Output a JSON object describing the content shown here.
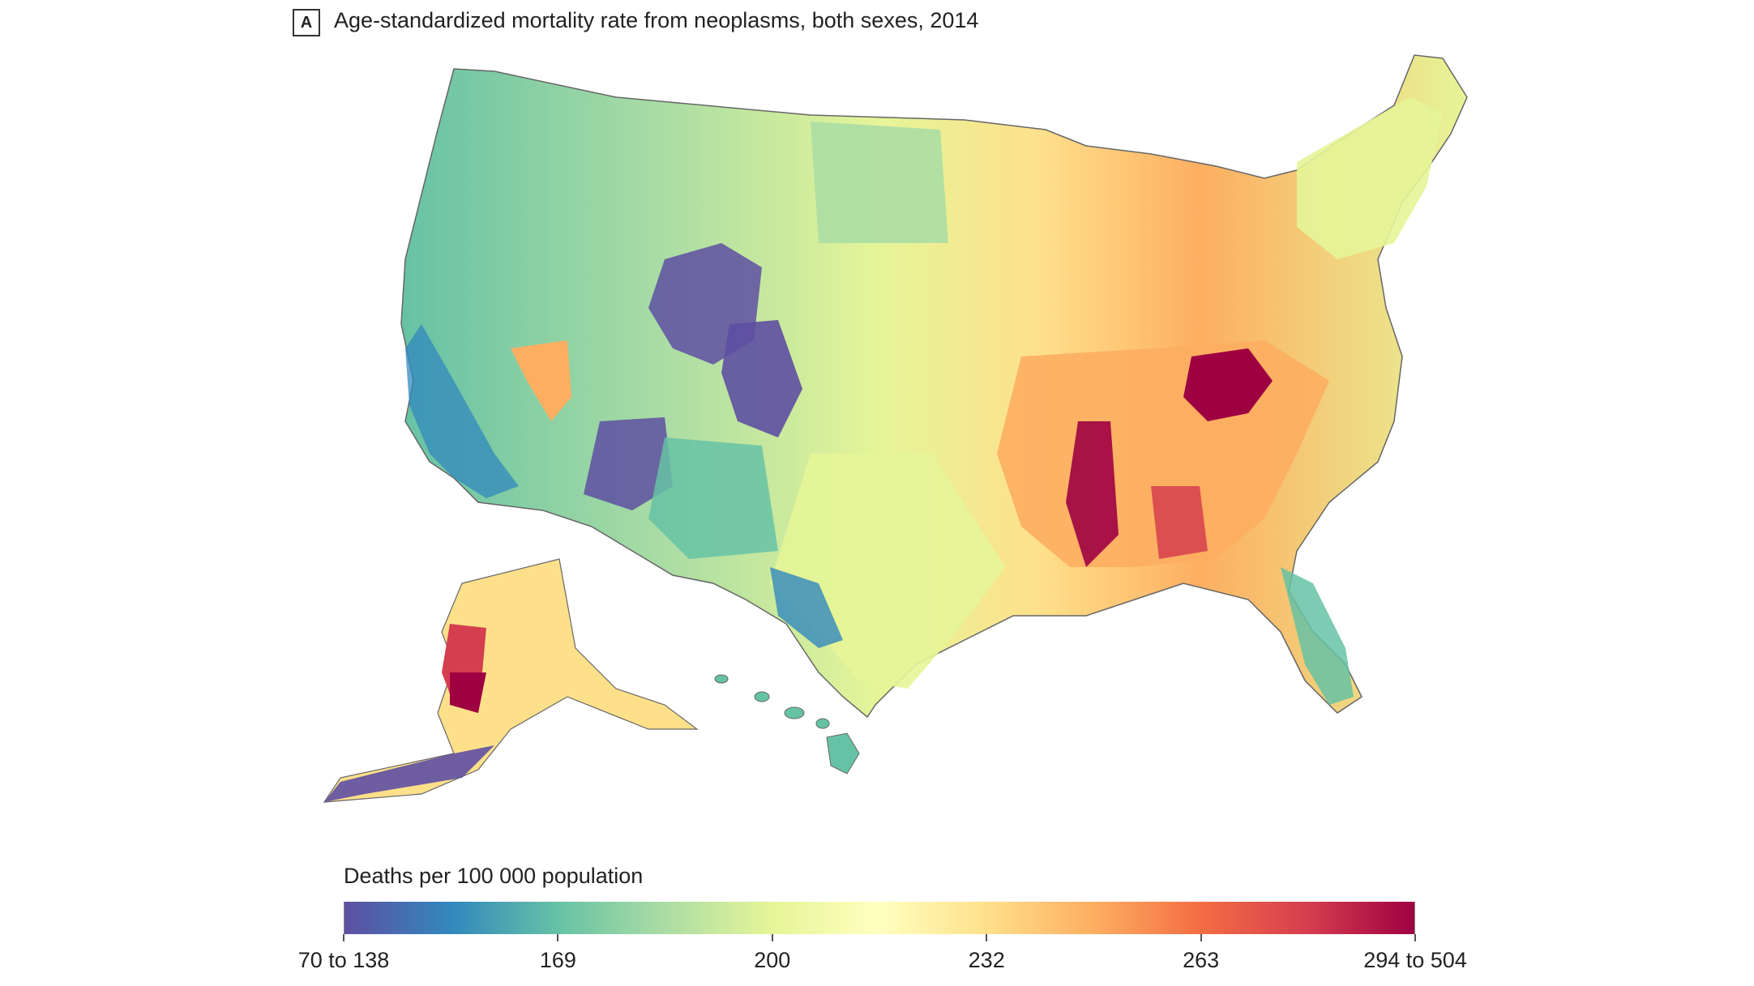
{
  "panel": {
    "label": "A"
  },
  "title": "Age-standardized mortality rate from neoplasms, both sexes, 2014",
  "legend": {
    "title": "Deaths per 100 000 population",
    "ticks": [
      "70 to 138",
      "169",
      "200",
      "232",
      "263",
      "294 to 504"
    ],
    "colors": [
      "#5e4fa2",
      "#3288bd",
      "#66c2a5",
      "#abdda4",
      "#e6f598",
      "#ffffbf",
      "#fee08b",
      "#fdae61",
      "#f46d43",
      "#d53e4f",
      "#9e0142"
    ]
  },
  "map": {
    "regions_depicted": [
      "contiguous-us",
      "alaska",
      "hawaii"
    ],
    "notable_high_areas": [
      "central-appalachia",
      "mississippi-delta",
      "western-alaska"
    ],
    "notable_low_areas": [
      "colorado-rockies",
      "southern-utah",
      "southern-florida",
      "texas-border"
    ]
  }
}
